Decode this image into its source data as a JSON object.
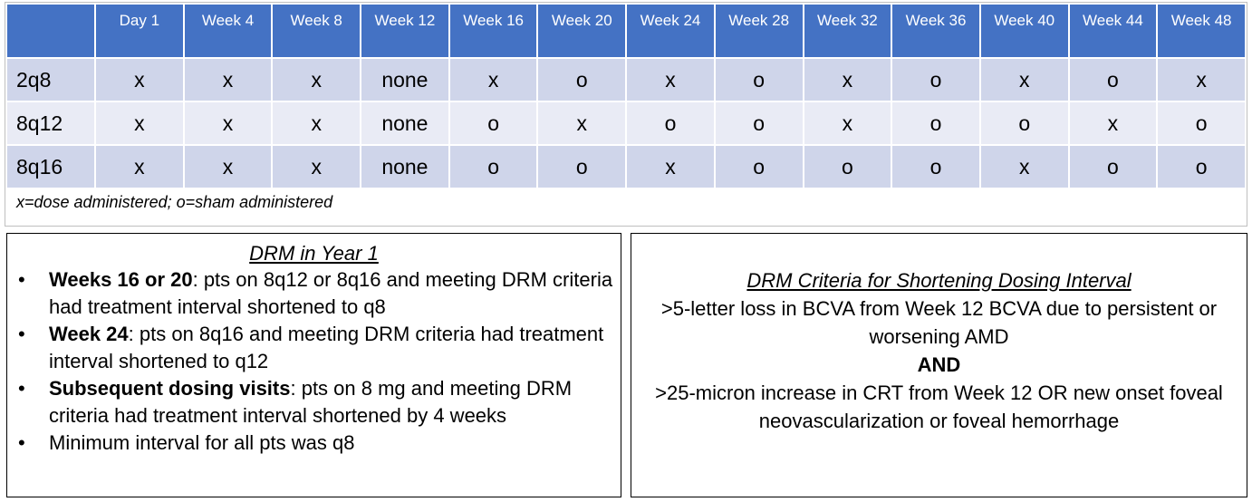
{
  "schedule": {
    "headers": [
      "",
      "Day 1",
      "Week 4",
      "Week 8",
      "Week 12",
      "Week 16",
      "Week 20",
      "Week 24",
      "Week 28",
      "Week 32",
      "Week 36",
      "Week 40",
      "Week 44",
      "Week 48"
    ],
    "rows": [
      {
        "label": "2q8",
        "cells": [
          "x",
          "x",
          "x",
          "none",
          "x",
          "o",
          "x",
          "o",
          "x",
          "o",
          "x",
          "o",
          "x"
        ]
      },
      {
        "label": "8q12",
        "cells": [
          "x",
          "x",
          "x",
          "none",
          "o",
          "x",
          "o",
          "o",
          "x",
          "o",
          "o",
          "x",
          "o"
        ]
      },
      {
        "label": "8q16",
        "cells": [
          "x",
          "x",
          "x",
          "none",
          "o",
          "o",
          "x",
          "o",
          "o",
          "o",
          "x",
          "o",
          "o"
        ]
      }
    ],
    "legend": "x=dose administered; o=sham administered"
  },
  "drm_year1": {
    "title": "DRM in Year 1",
    "bullet_glyph": "•",
    "items": [
      {
        "bold": "Weeks 16 or 20",
        "text": ": pts on 8q12 or 8q16 and meeting DRM criteria had treatment interval shortened to q8"
      },
      {
        "bold": "Week 24",
        "text": ": pts on 8q16 and meeting DRM criteria had treatment interval shortened to q12"
      },
      {
        "bold": "Subsequent dosing visits",
        "text": ": pts on 8 mg and meeting DRM criteria had treatment interval shortened by 4 weeks"
      },
      {
        "bold": "",
        "text": "Minimum interval for all pts was q8"
      }
    ]
  },
  "drm_criteria": {
    "title": "DRM Criteria for Shortening Dosing Interval",
    "line1": ">5-letter loss in BCVA from Week 12 BCVA due to persistent or worsening AMD",
    "and_label": "AND",
    "line2": ">25-micron increase in CRT from Week 12 OR new onset foveal neovascularization or foveal hemorrhage"
  },
  "colors": {
    "header_bg": "#4472c4",
    "row_dark": "#cfd5ea",
    "row_light": "#e9ebf5"
  }
}
